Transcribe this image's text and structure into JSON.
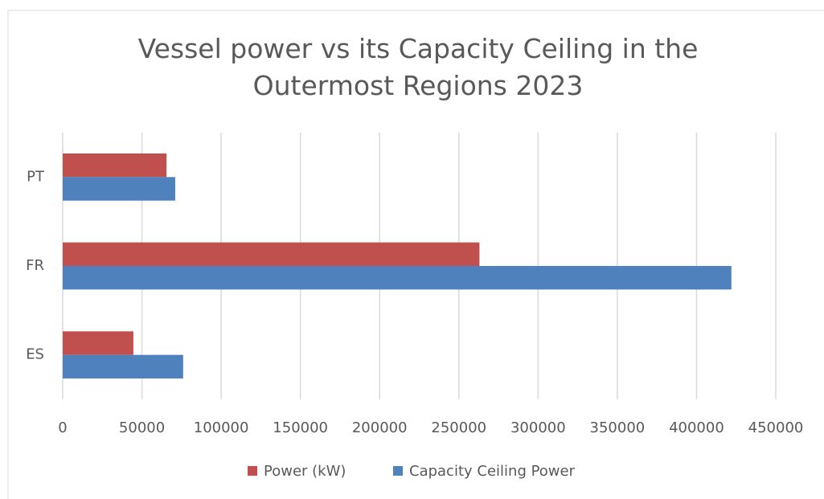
{
  "chart_data": {
    "type": "hbar",
    "title": "Vessel power vs its Capacity Ceiling in the Outermost Regions 2023",
    "categories": [
      "ES",
      "FR",
      "PT"
    ],
    "series": [
      {
        "name": "Power (kW)",
        "color": "#c0504d",
        "values": [
          44600,
          263000,
          65500
        ]
      },
      {
        "name": "Capacity Ceiling Power",
        "color": "#4f81bd",
        "values": [
          76000,
          422000,
          71000
        ]
      }
    ],
    "xlim": [
      0,
      450000
    ],
    "xticks": [
      0,
      50000,
      100000,
      150000,
      200000,
      250000,
      300000,
      350000,
      400000,
      450000
    ],
    "grid": true,
    "legend": "bottom"
  }
}
